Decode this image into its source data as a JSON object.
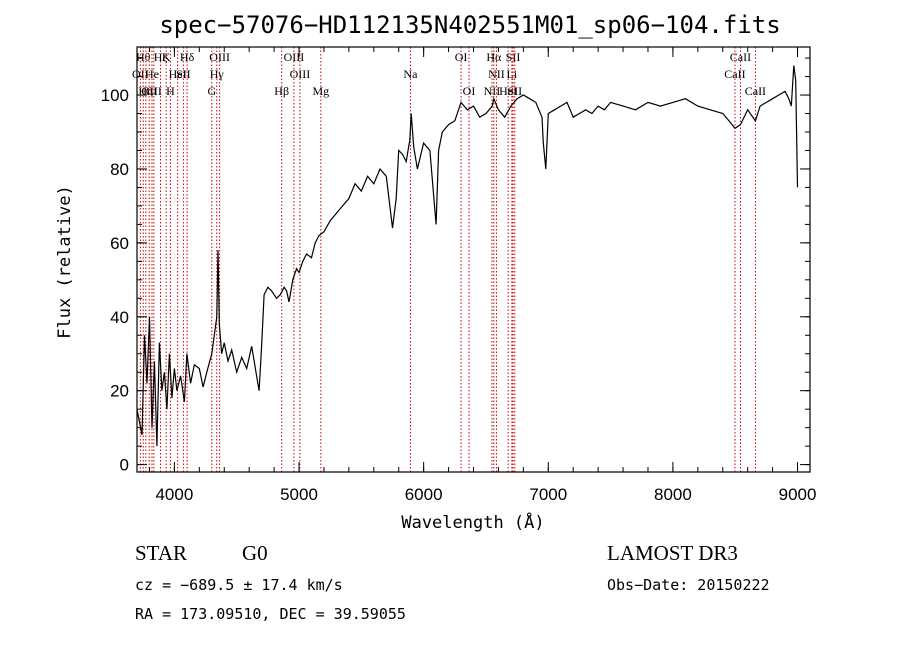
{
  "chart_data": {
    "type": "line",
    "title": "spec−57076−HD112135N402551M01_sp06−104.fits",
    "xlabel": "Wavelength (Å)",
    "ylabel": "Flux (relative)",
    "xlim": [
      3700,
      9100
    ],
    "ylim": [
      -2,
      113
    ],
    "x_ticks": [
      4000,
      5000,
      6000,
      7000,
      8000,
      9000
    ],
    "y_ticks": [
      0,
      20,
      40,
      60,
      80,
      100
    ],
    "x_minor_step": 200,
    "y_minor_step": 5,
    "line_color": "#000000",
    "marker_color": "#cc0000",
    "series": [
      {
        "x": [
          3700,
          3740,
          3760,
          3780,
          3800,
          3820,
          3840,
          3860,
          3880,
          3900,
          3920,
          3940,
          3960,
          3980,
          4000,
          4020,
          4050,
          4080,
          4100,
          4130,
          4160,
          4200,
          4230,
          4260,
          4300,
          4320,
          4340,
          4350,
          4360,
          4380,
          4400,
          4430,
          4460,
          4500,
          4540,
          4580,
          4620,
          4660,
          4680,
          4700,
          4720,
          4750,
          4780,
          4820,
          4850,
          4880,
          4900,
          4920,
          4950,
          4980,
          5000,
          5030,
          5060,
          5100,
          5130,
          5160,
          5200,
          5250,
          5300,
          5350,
          5400,
          5450,
          5500,
          5550,
          5600,
          5650,
          5700,
          5750,
          5780,
          5800,
          5830,
          5860,
          5890,
          5900,
          5920,
          5950,
          6000,
          6050,
          6080,
          6100,
          6120,
          6150,
          6200,
          6250,
          6300,
          6350,
          6400,
          6450,
          6500,
          6550,
          6563,
          6600,
          6650,
          6700,
          6750,
          6800,
          6850,
          6900,
          6950,
          6960,
          6980,
          7000,
          7050,
          7100,
          7150,
          7200,
          7250,
          7300,
          7350,
          7400,
          7450,
          7500,
          7600,
          7700,
          7800,
          7900,
          8000,
          8100,
          8200,
          8300,
          8400,
          8450,
          8498,
          8542,
          8600,
          8662,
          8700,
          8750,
          8800,
          8850,
          8900,
          8930,
          8950,
          8970,
          8985,
          9000
        ],
        "y": [
          15,
          8,
          35,
          22,
          40,
          10,
          28,
          5,
          33,
          20,
          25,
          15,
          30,
          18,
          26,
          20,
          24,
          17,
          30,
          22,
          27,
          26,
          21,
          25,
          30,
          35,
          40,
          58,
          38,
          30,
          33,
          28,
          31,
          25,
          29,
          26,
          32,
          24,
          20,
          32,
          46,
          48,
          47,
          45,
          46,
          48,
          47,
          44,
          50,
          53,
          52,
          55,
          57,
          56,
          60,
          62,
          63,
          66,
          68,
          70,
          72,
          76,
          74,
          78,
          76,
          80,
          78,
          64,
          72,
          85,
          84,
          82,
          88,
          95,
          86,
          80,
          87,
          85,
          73,
          65,
          85,
          90,
          92,
          93,
          98,
          96,
          97,
          94,
          95,
          97,
          99,
          96,
          94,
          97,
          99,
          100,
          99,
          98,
          94,
          87,
          80,
          95,
          96,
          97,
          98,
          94,
          95,
          96,
          95,
          97,
          96,
          98,
          97,
          96,
          98,
          97,
          98,
          99,
          97,
          96,
          95,
          93,
          91,
          92,
          96,
          93,
          97,
          98,
          99,
          100,
          101,
          99,
          97,
          108,
          104,
          75
        ]
      }
    ],
    "line_markers": [
      {
        "x": 3727,
        "label": "OII",
        "row": 2
      },
      {
        "x": 3750,
        "label": "Hθ",
        "row": 1
      },
      {
        "x": 3771,
        "label": "Hη",
        "row": 3
      },
      {
        "x": 3798,
        "label": "CII",
        "row": 3
      },
      {
        "x": 3820,
        "label": "He",
        "row": 2
      },
      {
        "x": 3835,
        "label": "CII",
        "row": 3
      },
      {
        "x": 3889,
        "label": "Hζ",
        "row": 1
      },
      {
        "x": 3934,
        "label": "K",
        "row": 1
      },
      {
        "x": 3968,
        "label": "H",
        "row": 3
      },
      {
        "x": 4026,
        "label": "HeI",
        "row": 2
      },
      {
        "x": 4072,
        "label": "SII",
        "row": 2
      },
      {
        "x": 4102,
        "label": "Hδ",
        "row": 1
      },
      {
        "x": 4300,
        "label": "G",
        "row": 3
      },
      {
        "x": 4340,
        "label": "Hγ",
        "row": 2
      },
      {
        "x": 4363,
        "label": "OIII",
        "row": 1
      },
      {
        "x": 4861,
        "label": "Hβ",
        "row": 3
      },
      {
        "x": 4959,
        "label": "OIII",
        "row": 1
      },
      {
        "x": 5007,
        "label": "OIII",
        "row": 2
      },
      {
        "x": 5175,
        "label": "Mg",
        "row": 3
      },
      {
        "x": 5894,
        "label": "Na",
        "row": 2
      },
      {
        "x": 6300,
        "label": "OI",
        "row": 1
      },
      {
        "x": 6364,
        "label": "OI",
        "row": 3
      },
      {
        "x": 6548,
        "label": "NII",
        "row": 3
      },
      {
        "x": 6563,
        "label": "Hα",
        "row": 1
      },
      {
        "x": 6584,
        "label": "NII",
        "row": 2
      },
      {
        "x": 6678,
        "label": "HeI",
        "row": 3
      },
      {
        "x": 6708,
        "label": "Li",
        "row": 2
      },
      {
        "x": 6717,
        "label": "SII",
        "row": 1
      },
      {
        "x": 6731,
        "label": "SII",
        "row": 3
      },
      {
        "x": 8498,
        "label": "CaII",
        "row": 2
      },
      {
        "x": 8542,
        "label": "CaII",
        "row": 1
      },
      {
        "x": 8662,
        "label": "CaII",
        "row": 3
      }
    ]
  },
  "info": {
    "object_class": "STAR",
    "subclass": "G0",
    "survey": "LAMOST DR3",
    "redshift_text": "cz = −689.5 ± 17.4 km/s",
    "obs_date_text": "Obs−Date: 20150222",
    "coords_text": "RA = 173.09510, DEC =  39.59055"
  }
}
